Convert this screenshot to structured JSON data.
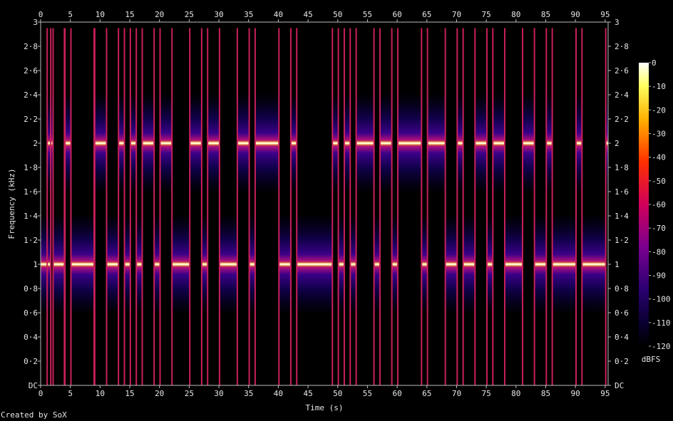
{
  "chart_data": {
    "type": "heatmap",
    "title": "",
    "xlabel": "Time (s)",
    "ylabel": "Frequency (kHz)",
    "xlim": [
      0,
      95.5
    ],
    "ylim": [
      0,
      3
    ],
    "x_ticks": [
      0,
      5,
      10,
      15,
      20,
      25,
      30,
      35,
      40,
      45,
      50,
      55,
      60,
      65,
      70,
      75,
      80,
      85,
      90,
      95
    ],
    "x_tick_labels": [
      "0",
      "5",
      "10",
      "15",
      "20",
      "25",
      "30",
      "35",
      "40",
      "45",
      "50",
      "55",
      "60",
      "65",
      "70",
      "75",
      "80",
      "85",
      "90",
      "95"
    ],
    "y_ticks": [
      0,
      0.2,
      0.4,
      0.6,
      0.8,
      1,
      1.2,
      1.4,
      1.6,
      1.8,
      2,
      2.2,
      2.4,
      2.6,
      2.8,
      3
    ],
    "y_tick_labels": [
      "DC",
      "0·2",
      "0·4",
      "0·6",
      "0·8",
      "1",
      "1·2",
      "1·4",
      "1·6",
      "1·8",
      "2",
      "2·2",
      "2·4",
      "2·6",
      "2·8",
      "3"
    ],
    "colorbar": {
      "label": "dBFS",
      "range": [
        -120,
        0
      ],
      "ticks": [
        0,
        -10,
        -20,
        -30,
        -40,
        -50,
        -60,
        -70,
        -80,
        -90,
        -100,
        -110,
        -120
      ],
      "tick_labels": [
        "0",
        "-10",
        "-20",
        "-30",
        "-40",
        "-50",
        "-60",
        "-70",
        "-80",
        "-90",
        "-100",
        "-110",
        "-120"
      ]
    },
    "tone_frequencies_khz": [
      1,
      2
    ],
    "tones": [
      {
        "start": 0.0,
        "end": 1.7,
        "freq": 1
      },
      {
        "start": 2.1,
        "end": 4.0,
        "freq": 1
      },
      {
        "start": 1.1,
        "end": 2.1,
        "freq": 2
      },
      {
        "start": 4.1,
        "end": 5.1,
        "freq": 2
      },
      {
        "start": 5.1,
        "end": 9.0,
        "freq": 1
      },
      {
        "start": 9.1,
        "end": 11.1,
        "freq": 2
      },
      {
        "start": 11.1,
        "end": 13.1,
        "freq": 1
      },
      {
        "start": 13.1,
        "end": 14.1,
        "freq": 2
      },
      {
        "start": 14.1,
        "end": 15.1,
        "freq": 1
      },
      {
        "start": 15.1,
        "end": 16.1,
        "freq": 2
      },
      {
        "start": 16.1,
        "end": 17.1,
        "freq": 1
      },
      {
        "start": 17.1,
        "end": 19.1,
        "freq": 2
      },
      {
        "start": 19.1,
        "end": 20.1,
        "freq": 1
      },
      {
        "start": 20.1,
        "end": 22.1,
        "freq": 2
      },
      {
        "start": 22.1,
        "end": 25.1,
        "freq": 1
      },
      {
        "start": 25.1,
        "end": 27.1,
        "freq": 2
      },
      {
        "start": 27.1,
        "end": 28.1,
        "freq": 1
      },
      {
        "start": 28.1,
        "end": 30.1,
        "freq": 2
      },
      {
        "start": 30.1,
        "end": 33.1,
        "freq": 1
      },
      {
        "start": 33.1,
        "end": 35.1,
        "freq": 2
      },
      {
        "start": 35.1,
        "end": 36.1,
        "freq": 1
      },
      {
        "start": 36.1,
        "end": 40.1,
        "freq": 2
      },
      {
        "start": 40.1,
        "end": 42.1,
        "freq": 1
      },
      {
        "start": 42.1,
        "end": 43.1,
        "freq": 2
      },
      {
        "start": 43.1,
        "end": 49.1,
        "freq": 1
      },
      {
        "start": 49.1,
        "end": 50.1,
        "freq": 2
      },
      {
        "start": 50.1,
        "end": 51.1,
        "freq": 1
      },
      {
        "start": 51.1,
        "end": 52.1,
        "freq": 2
      },
      {
        "start": 52.1,
        "end": 53.1,
        "freq": 1
      },
      {
        "start": 53.1,
        "end": 56.1,
        "freq": 2
      },
      {
        "start": 56.1,
        "end": 57.1,
        "freq": 1
      },
      {
        "start": 57.1,
        "end": 59.1,
        "freq": 2
      },
      {
        "start": 59.1,
        "end": 60.1,
        "freq": 1
      },
      {
        "start": 60.1,
        "end": 64.1,
        "freq": 2
      },
      {
        "start": 64.1,
        "end": 65.1,
        "freq": 1
      },
      {
        "start": 65.1,
        "end": 68.1,
        "freq": 2
      },
      {
        "start": 68.1,
        "end": 70.1,
        "freq": 1
      },
      {
        "start": 70.1,
        "end": 71.1,
        "freq": 2
      },
      {
        "start": 71.1,
        "end": 73.1,
        "freq": 1
      },
      {
        "start": 73.1,
        "end": 75.1,
        "freq": 2
      },
      {
        "start": 75.1,
        "end": 76.1,
        "freq": 1
      },
      {
        "start": 76.1,
        "end": 78.1,
        "freq": 2
      },
      {
        "start": 78.1,
        "end": 81.1,
        "freq": 1
      },
      {
        "start": 81.1,
        "end": 83.1,
        "freq": 2
      },
      {
        "start": 83.1,
        "end": 85.1,
        "freq": 1
      },
      {
        "start": 85.1,
        "end": 86.1,
        "freq": 2
      },
      {
        "start": 86.1,
        "end": 90.1,
        "freq": 1
      },
      {
        "start": 90.1,
        "end": 91.1,
        "freq": 2
      },
      {
        "start": 91.1,
        "end": 95.1,
        "freq": 1
      },
      {
        "start": 95.1,
        "end": 95.5,
        "freq": 2
      }
    ]
  },
  "footer": {
    "credit": "Created by SoX"
  }
}
